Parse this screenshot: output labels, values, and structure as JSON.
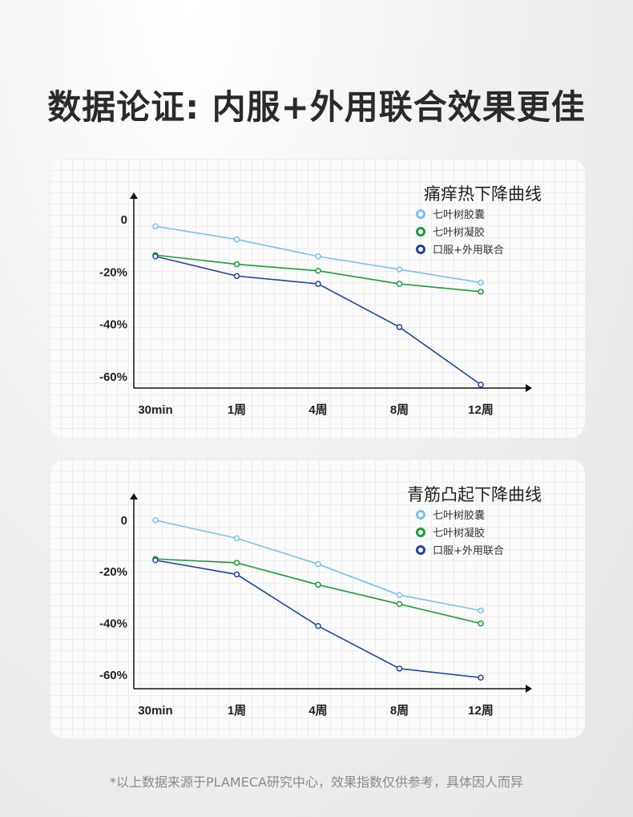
{
  "page": {
    "title": "数据论证: 内服+外用联合效果更佳",
    "footnote": "*以上数据来源于PLAMECA研究中心，效果指数仅供参考，具体因人而异"
  },
  "chart_data": [
    {
      "type": "line",
      "title": "痛痒热下降曲线",
      "categories": [
        "30min",
        "1周",
        "4周",
        "8周",
        "12周"
      ],
      "y_ticks": [
        {
          "value": 0,
          "label": "0"
        },
        {
          "value": -20,
          "label": "-20%"
        },
        {
          "value": -40,
          "label": "-40%"
        },
        {
          "value": -60,
          "label": "-60%"
        }
      ],
      "ylim": [
        -64,
        4
      ],
      "legend_position": "top-right",
      "grid": false,
      "series": [
        {
          "name": "七叶树胶囊",
          "color": "#7cc0ee",
          "values": [
            -2.5,
            -7.5,
            -14,
            -19,
            -24
          ]
        },
        {
          "name": "七叶树凝胶",
          "color": "#1f9a3c",
          "values": [
            -13.5,
            -17,
            -19.5,
            -24.5,
            -27.5
          ]
        },
        {
          "name": "口服+外用联合",
          "color": "#22449a",
          "values": [
            -14,
            -21.5,
            -24.5,
            -41,
            -63
          ]
        }
      ]
    },
    {
      "type": "line",
      "title": "青筋凸起下降曲线",
      "categories": [
        "30min",
        "1周",
        "4周",
        "8周",
        "12周"
      ],
      "y_ticks": [
        {
          "value": 0,
          "label": "0"
        },
        {
          "value": -20,
          "label": "-20%"
        },
        {
          "value": -40,
          "label": "-40%"
        },
        {
          "value": -60,
          "label": "-60%"
        }
      ],
      "ylim": [
        -65,
        4
      ],
      "legend_position": "top-right",
      "grid": false,
      "series": [
        {
          "name": "七叶树胶囊",
          "color": "#7cc0ee",
          "values": [
            0,
            -7,
            -17,
            -29,
            -35
          ]
        },
        {
          "name": "七叶树凝胶",
          "color": "#1f9a3c",
          "values": [
            -15,
            -16.5,
            -25,
            -32.5,
            -40
          ]
        },
        {
          "name": "口服+外用联合",
          "color": "#22449a",
          "values": [
            -15.5,
            -21,
            -41,
            -57.5,
            -61
          ]
        }
      ]
    }
  ]
}
